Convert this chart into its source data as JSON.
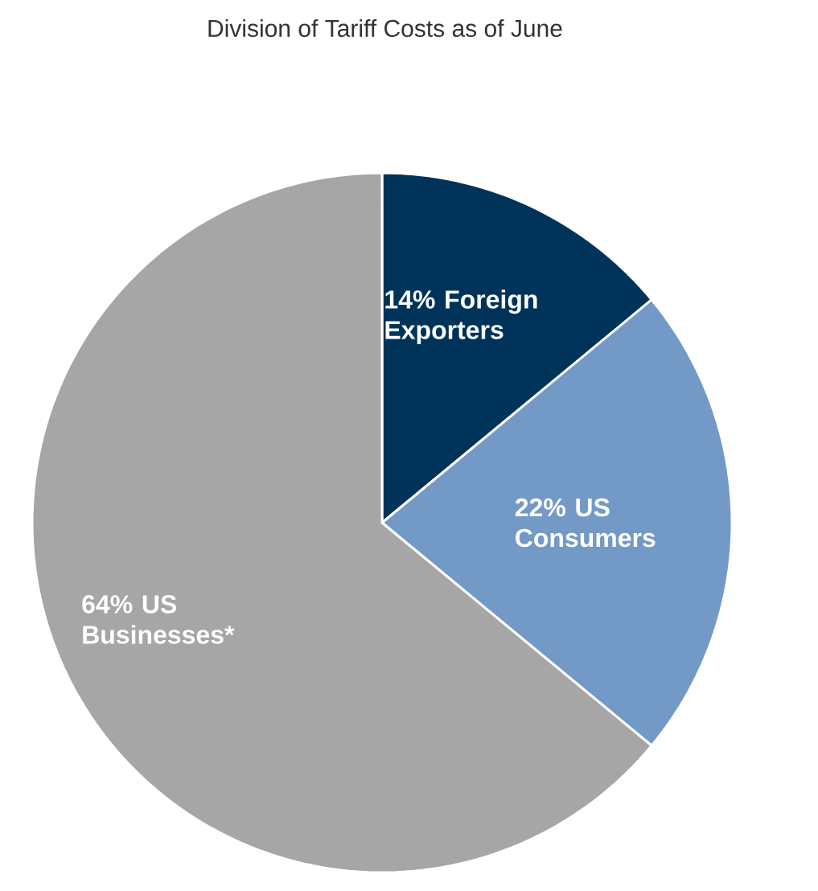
{
  "chart_data": {
    "type": "pie",
    "title": "Division of Tariff Costs as of June",
    "categories": [
      "Foreign Exporters",
      "US Consumers",
      "US Businesses*"
    ],
    "values": [
      14,
      22,
      64
    ],
    "value_labels": [
      "14%",
      "22%",
      "64%"
    ],
    "colors": [
      "#003359",
      "#7399c6",
      "#a6a6a6"
    ]
  }
}
